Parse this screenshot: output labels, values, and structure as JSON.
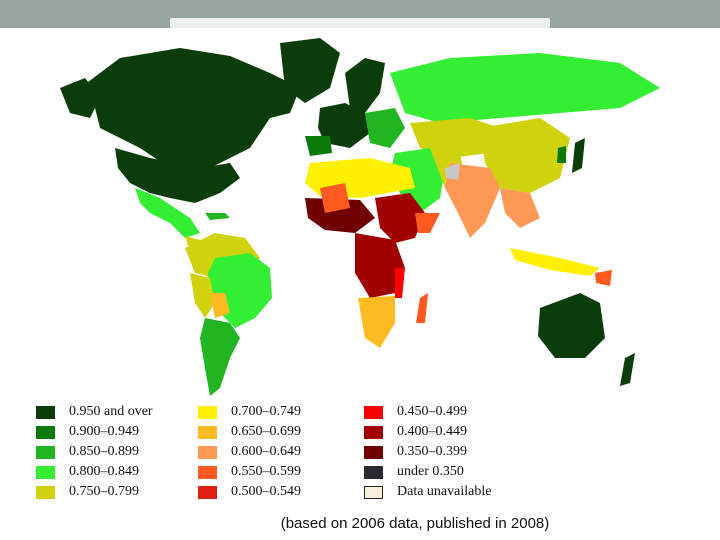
{
  "legend": {
    "items": [
      {
        "label": "0.950 and over",
        "color": "#0a3d0a"
      },
      {
        "label": "0.900–0.949",
        "color": "#0b7a0b"
      },
      {
        "label": "0.850–0.899",
        "color": "#22b522"
      },
      {
        "label": "0.800–0.849",
        "color": "#33ee33"
      },
      {
        "label": "0.750–0.799",
        "color": "#cfd20c"
      },
      {
        "label": "0.700–0.749",
        "color": "#ffef00"
      },
      {
        "label": "0.650–0.699",
        "color": "#ffbb22"
      },
      {
        "label": "0.600–0.649",
        "color": "#ff9955"
      },
      {
        "label": "0.550–0.599",
        "color": "#ff5a1f"
      },
      {
        "label": "0.500–0.549",
        "color": "#e02010"
      },
      {
        "label": "0.450–0.499",
        "color": "#ff0000"
      },
      {
        "label": "0.400–0.449",
        "color": "#a00000"
      },
      {
        "label": "0.350–0.399",
        "color": "#6e0000"
      },
      {
        "label": "under 0.350",
        "color": "#2a2a33"
      },
      {
        "label": "Data unavailable",
        "color": "#f5f0dc"
      }
    ]
  },
  "caption": "(based on 2006 data, published in 2008)"
}
